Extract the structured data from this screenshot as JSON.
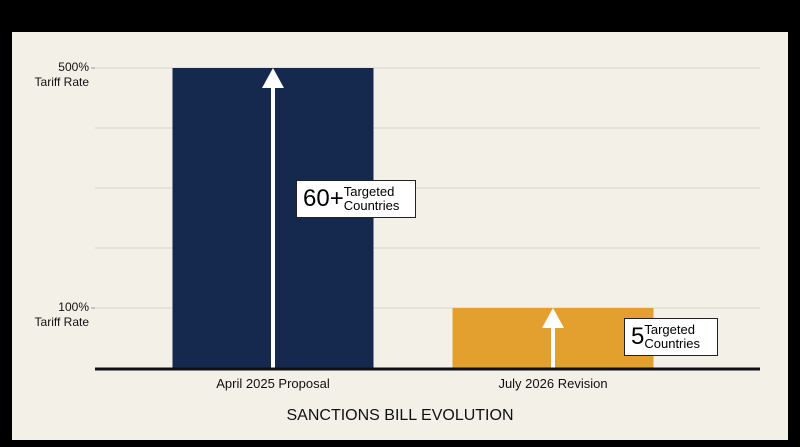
{
  "chart_data": {
    "type": "bar",
    "title": "SANCTIONS BILL EVOLUTION",
    "categories": [
      "April 2025 Proposal",
      "July 2026 Revision"
    ],
    "values": [
      500,
      100
    ],
    "colors": [
      "#15294f",
      "#e3a02e"
    ],
    "ylim": [
      0,
      560
    ],
    "yticks": [
      {
        "value": 100,
        "label": "100%\nTariff Rate"
      },
      {
        "value": 500,
        "label": "500%\nTariff Rate"
      }
    ],
    "grid_values": [
      100,
      200,
      300,
      400,
      500
    ],
    "grid": true,
    "annotations": [
      {
        "big": "60+",
        "small": "Targeted\nCountries"
      },
      {
        "big": "5",
        "small": "Targeted\nCountries"
      }
    ]
  }
}
